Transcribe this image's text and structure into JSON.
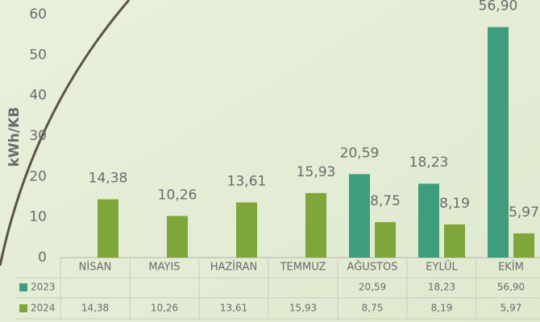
{
  "chart_data": {
    "type": "bar",
    "y_label": "kWh/KB",
    "categories": [
      "NİSAN",
      "MAYIS",
      "HAZİRAN",
      "TEMMUZ",
      "AĞUSTOS",
      "EYLÜL",
      "EKİM"
    ],
    "series": [
      {
        "name": "2023",
        "color": "#3f9d7d",
        "values": [
          null,
          null,
          null,
          null,
          20.59,
          18.23,
          56.9
        ],
        "value_labels": [
          null,
          null,
          null,
          null,
          "20,59",
          "18,23",
          "56,90"
        ]
      },
      {
        "name": "2024",
        "color": "#7fa63a",
        "values": [
          14.38,
          10.26,
          13.61,
          15.93,
          8.75,
          8.19,
          5.97
        ],
        "value_labels": [
          "14,38",
          "10,26",
          "13,61",
          "15,93",
          "8,75",
          "8,19",
          "5,97"
        ]
      }
    ],
    "ylim": [
      0,
      60
    ],
    "yticks": [
      0,
      10,
      20,
      30,
      40,
      50,
      60
    ]
  }
}
